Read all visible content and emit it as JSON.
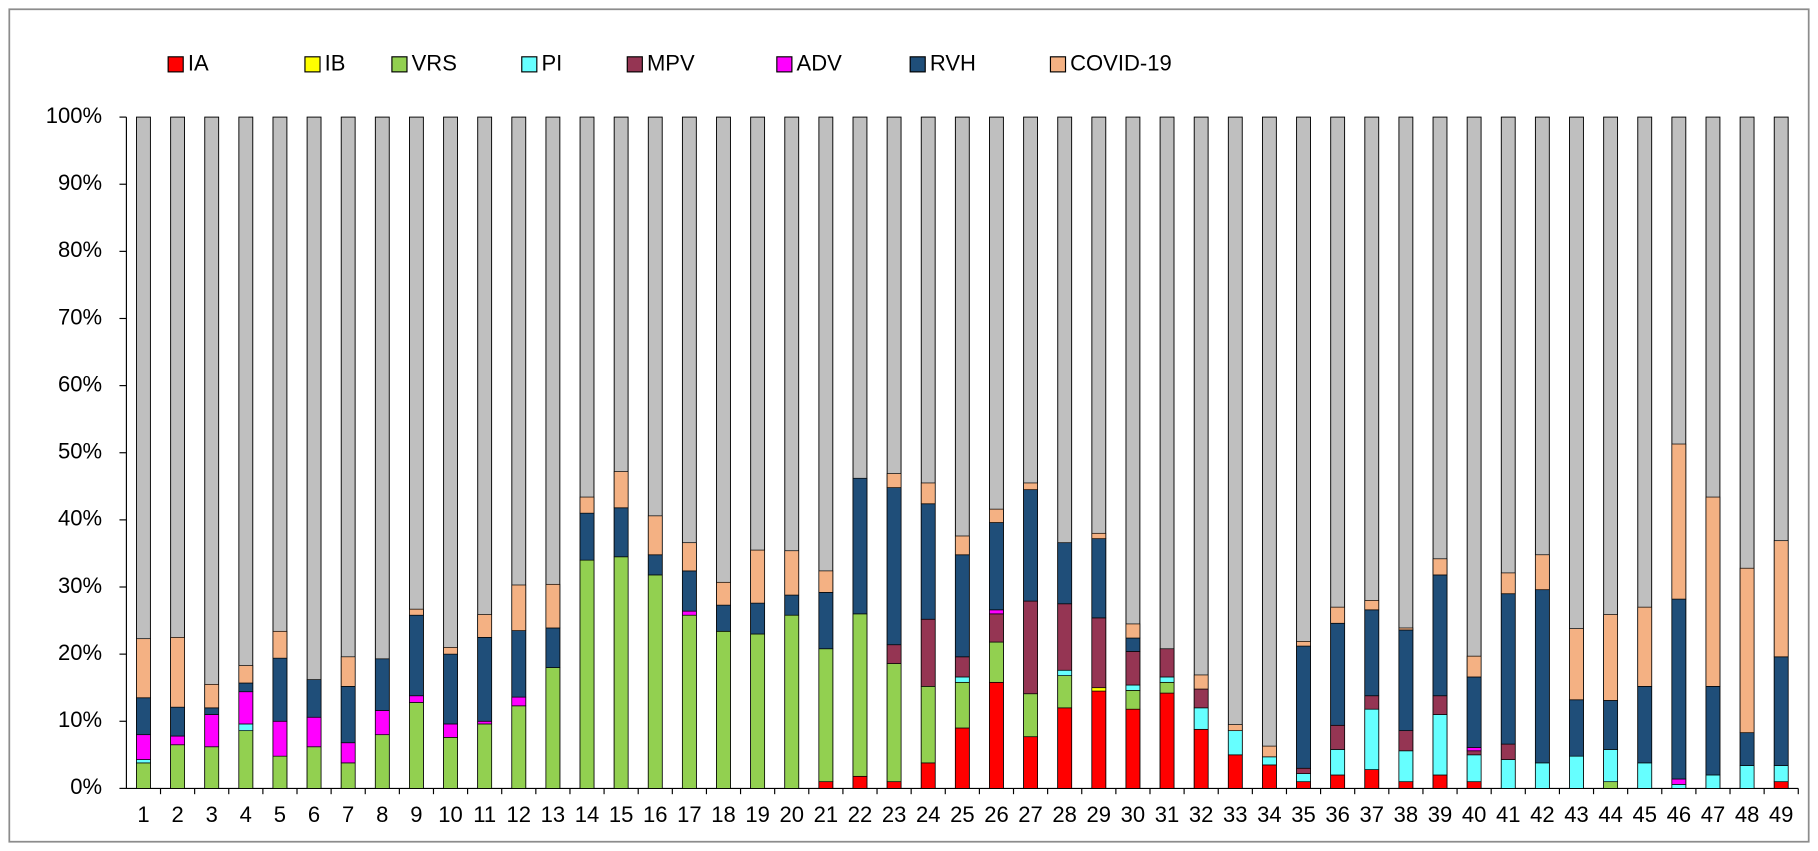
{
  "chart_data": {
    "type": "stacked_bar",
    "categories": [
      "1",
      "2",
      "3",
      "4",
      "5",
      "6",
      "7",
      "8",
      "9",
      "10",
      "11",
      "12",
      "13",
      "14",
      "15",
      "16",
      "17",
      "18",
      "19",
      "20",
      "21",
      "22",
      "23",
      "24",
      "25",
      "26",
      "27",
      "28",
      "29",
      "30",
      "31",
      "32",
      "33",
      "34",
      "35",
      "36",
      "37",
      "38",
      "39",
      "40",
      "41",
      "42",
      "43",
      "44",
      "45",
      "46",
      "47",
      "48",
      "49"
    ],
    "series": [
      {
        "name": "IA",
        "color": "#ff0000",
        "values": [
          0,
          0,
          0,
          0,
          0,
          0,
          0,
          0,
          0,
          0,
          0,
          0,
          0,
          0,
          0,
          0,
          0,
          0,
          0,
          0,
          1.0,
          1.8,
          1.0,
          3.8,
          9.0,
          15.8,
          7.7,
          12.0,
          14.5,
          11.8,
          14.2,
          8.8,
          5.0,
          3.5,
          1.0,
          2.0,
          2.8,
          1.0,
          2.0,
          1.0,
          0,
          0,
          0,
          0,
          0,
          0,
          0,
          0,
          1.0
        ]
      },
      {
        "name": "IB",
        "color": "#ffff00",
        "values": [
          0,
          0,
          0,
          0,
          0,
          0,
          0,
          0,
          0,
          0,
          0,
          0,
          0,
          0,
          0,
          0,
          0,
          0,
          0,
          0,
          0,
          0,
          0,
          0,
          0,
          0,
          0,
          0,
          0.5,
          0,
          0,
          0,
          0,
          0,
          0,
          0,
          0,
          0,
          0,
          0,
          0,
          0,
          0,
          0,
          0,
          0,
          0,
          0,
          0
        ]
      },
      {
        "name": "VRS",
        "color": "#92d050",
        "values": [
          3.8,
          6.5,
          6.2,
          8.6,
          4.8,
          6.2,
          3.8,
          8.0,
          12.8,
          7.6,
          9.6,
          12.3,
          18.0,
          34.0,
          34.5,
          31.8,
          25.8,
          23.4,
          23.0,
          25.8,
          19.8,
          24.2,
          17.6,
          11.4,
          6.8,
          6.0,
          6.4,
          4.8,
          0,
          2.8,
          1.6,
          0,
          0,
          0,
          0,
          0,
          0,
          0,
          0,
          0,
          0,
          0,
          0,
          1.0,
          0,
          0,
          0,
          0,
          0
        ]
      },
      {
        "name": "PI",
        "color": "#66ffff",
        "values": [
          0.5,
          0,
          0,
          1.0,
          0,
          0,
          0,
          0,
          0,
          0,
          0,
          0,
          0,
          0,
          0,
          0,
          0,
          0,
          0,
          0,
          0,
          0,
          0,
          0,
          0.8,
          0,
          0,
          0.8,
          0,
          0.8,
          0.8,
          3.2,
          3.6,
          1.2,
          1.2,
          3.8,
          9.0,
          4.6,
          9.0,
          4.0,
          4.3,
          3.8,
          4.8,
          4.8,
          3.8,
          0.6,
          2.0,
          3.4,
          2.4
        ]
      },
      {
        "name": "MPV",
        "color": "#953553",
        "values": [
          0,
          0,
          0,
          0,
          0,
          0,
          0,
          0,
          0,
          0,
          0,
          0,
          0,
          0,
          0,
          0,
          0,
          0,
          0,
          0,
          0,
          0,
          2.8,
          10.0,
          3.0,
          4.2,
          13.8,
          9.9,
          10.4,
          5.0,
          4.2,
          2.8,
          0,
          0,
          0.8,
          3.6,
          2.0,
          3.0,
          2.8,
          0.6,
          2.3,
          0,
          0,
          0,
          0,
          0,
          0,
          0,
          0
        ]
      },
      {
        "name": "ADV",
        "color": "#ff00ff",
        "values": [
          3.7,
          1.3,
          4.8,
          4.8,
          5.2,
          4.4,
          3.0,
          3.6,
          1.0,
          2.0,
          0.4,
          1.3,
          0,
          0,
          0,
          0,
          0.6,
          0,
          0,
          0,
          0,
          0,
          0,
          0,
          0,
          0.6,
          0,
          0,
          0,
          0,
          0,
          0,
          0,
          0,
          0,
          0,
          0,
          0,
          0,
          0.5,
          0,
          0,
          0,
          0,
          0,
          0.8,
          0,
          0,
          0
        ]
      },
      {
        "name": "RVH",
        "color": "#1f4e79",
        "values": [
          5.5,
          4.3,
          1.0,
          1.3,
          9.4,
          5.6,
          8.4,
          7.7,
          12.0,
          10.4,
          12.5,
          9.9,
          5.9,
          7.0,
          7.3,
          3.0,
          6.0,
          3.9,
          4.6,
          3.0,
          8.4,
          20.2,
          23.4,
          17.2,
          15.2,
          13.0,
          16.6,
          9.1,
          11.8,
          2.0,
          0,
          0,
          0,
          0,
          18.2,
          15.2,
          12.8,
          15.0,
          18.0,
          10.5,
          22.4,
          25.8,
          8.4,
          7.3,
          11.4,
          26.8,
          13.2,
          4.9,
          16.2
        ]
      },
      {
        "name": "COVID-19",
        "color": "#f4b183",
        "values": [
          8.8,
          10.4,
          3.5,
          2.6,
          4.0,
          0,
          4.4,
          0,
          0.9,
          1.0,
          3.4,
          6.8,
          6.5,
          2.4,
          5.4,
          5.8,
          4.2,
          3.4,
          7.9,
          6.6,
          3.2,
          0,
          2.1,
          3.1,
          2.8,
          2.0,
          1.0,
          0,
          0.8,
          2.1,
          0,
          2.1,
          0.9,
          1.6,
          0.7,
          2.4,
          1.4,
          0.3,
          2.4,
          3.1,
          3.1,
          5.2,
          10.6,
          12.8,
          11.8,
          23.1,
          28.2,
          24.5,
          17.3
        ]
      }
    ],
    "ylim": [
      0,
      100
    ],
    "yticks": [
      {
        "value": 0,
        "label": "0%"
      },
      {
        "value": 10,
        "label": "10%"
      },
      {
        "value": 20,
        "label": "20%"
      },
      {
        "value": 30,
        "label": "30%"
      },
      {
        "value": 40,
        "label": "40%"
      },
      {
        "value": 50,
        "label": "50%"
      },
      {
        "value": 60,
        "label": "60%"
      },
      {
        "value": 70,
        "label": "70%"
      },
      {
        "value": 80,
        "label": "80%"
      },
      {
        "value": 90,
        "label": "90%"
      },
      {
        "value": 100,
        "label": "100%"
      }
    ],
    "legend": "top"
  }
}
